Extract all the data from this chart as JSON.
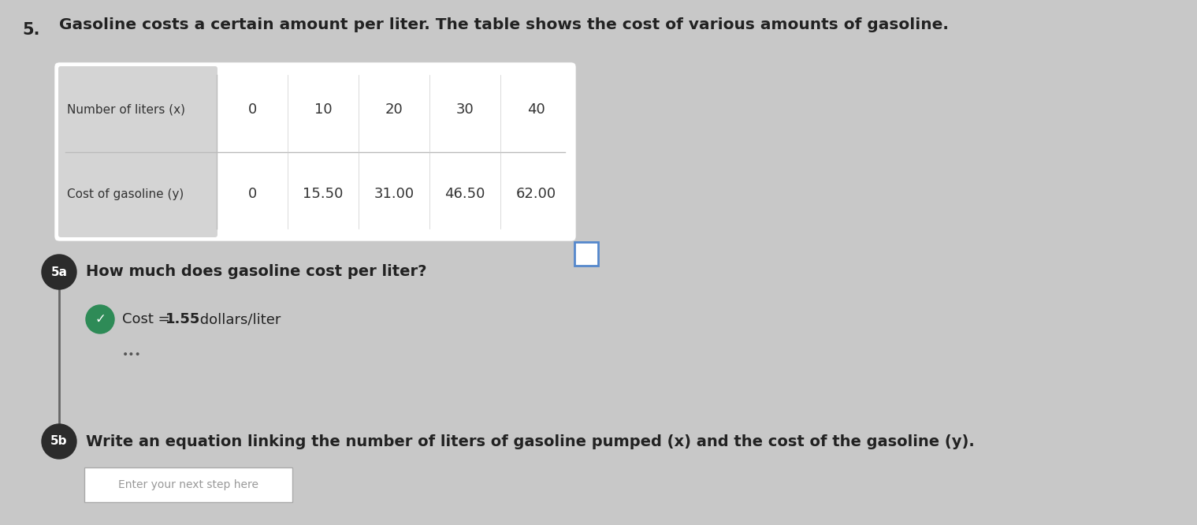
{
  "background_color": "#c8c8c8",
  "question_number": "5.",
  "title_line1": "Gasoline costs a certain amount per liter. The table shows the cost of various amounts of gasoline.",
  "title_fontsize": 14.5,
  "table": {
    "row1_label": "Number of liters (x)",
    "row2_label": "Cost of gasoline (y)",
    "x_values": [
      "0",
      "10",
      "20",
      "30",
      "40"
    ],
    "y_values": [
      "0",
      "15.50",
      "31.00",
      "46.50",
      "62.00"
    ],
    "label_bg_color": "#d8d8d8",
    "cell_bg_color": "#ffffff",
    "border_color": "#bbbbbb"
  },
  "part5a_badge_color": "#2b2b2b",
  "part5a_label": "5a",
  "part5a_question": "How much does gasoline cost per liter?",
  "part5a_question_fontsize": 14,
  "part5a_answer_text": "Cost =  1.55  dollars/liter",
  "part5a_answer_fontsize": 13,
  "checkmark_color": "#2e8b57",
  "dots": "•••",
  "part5b_badge_color": "#2b2b2b",
  "part5b_label": "5b",
  "part5b_question": "Write an equation linking the number of liters of gasoline pumped (x) and the cost of the gasoline (y).",
  "part5b_question_fontsize": 14,
  "input_box_text": "Enter your next step here"
}
